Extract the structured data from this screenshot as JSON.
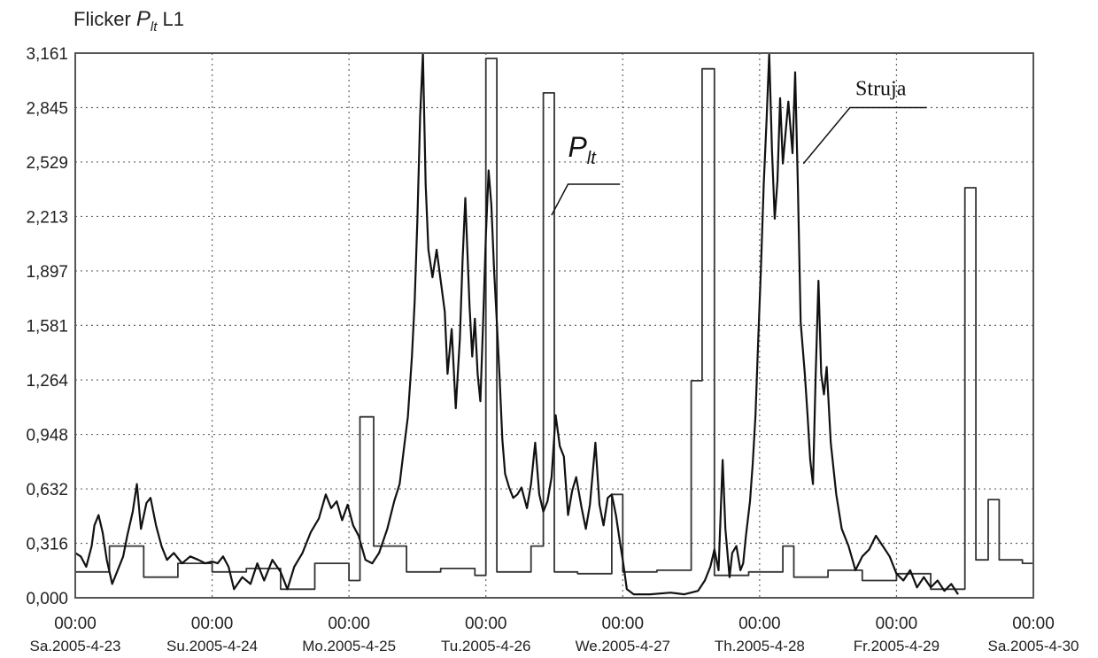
{
  "chart_data": {
    "type": "line",
    "title": "Flicker",
    "title_symbol": "P",
    "title_subscript": "lt",
    "title_suffix": " L1",
    "xlabel": "",
    "ylabel": "",
    "ylim": [
      0,
      3.161
    ],
    "grid": true,
    "y_ticks": [
      "3,161",
      "2,845",
      "2,529",
      "2,213",
      "1,897",
      "1,581",
      "1,264",
      "0,948",
      "0,632",
      "0,316",
      "0,000"
    ],
    "y_tick_values": [
      3.161,
      2.845,
      2.529,
      2.213,
      1.897,
      1.581,
      1.264,
      0.948,
      0.632,
      0.316,
      0.0
    ],
    "x_ticks": [
      {
        "time": "00:00",
        "date": "Sa.2005-4-23"
      },
      {
        "time": "00:00",
        "date": "Su.2005-4-24"
      },
      {
        "time": "00:00",
        "date": "Mo.2005-4-25"
      },
      {
        "time": "00:00",
        "date": "Tu.2005-4-26"
      },
      {
        "time": "00:00",
        "date": "We.2005-4-27"
      },
      {
        "time": "00:00",
        "date": "Th.2005-4-28"
      },
      {
        "time": "00:00",
        "date": "Fr.2005-4-29"
      },
      {
        "time": "00:00",
        "date": "Sa.2005-4-30"
      }
    ],
    "xlim": [
      0,
      7
    ],
    "x_unit": "days from Sa.2005-4-23 00:00",
    "annotations": [
      {
        "text": "Struja",
        "series": "Struja"
      },
      {
        "text": "P",
        "subscript": "lt",
        "series": "Plt"
      }
    ],
    "series": [
      {
        "name": "Plt",
        "style": "step",
        "color": "#333333",
        "points": [
          [
            0.0,
            0.15
          ],
          [
            0.25,
            0.15
          ],
          [
            0.25,
            0.3
          ],
          [
            0.5,
            0.3
          ],
          [
            0.5,
            0.12
          ],
          [
            0.75,
            0.12
          ],
          [
            0.75,
            0.2
          ],
          [
            1.0,
            0.2
          ],
          [
            1.0,
            0.15
          ],
          [
            1.25,
            0.15
          ],
          [
            1.25,
            0.17
          ],
          [
            1.5,
            0.17
          ],
          [
            1.5,
            0.05
          ],
          [
            1.75,
            0.05
          ],
          [
            1.75,
            0.2
          ],
          [
            2.0,
            0.2
          ],
          [
            2.0,
            0.1
          ],
          [
            2.08,
            0.1
          ],
          [
            2.08,
            1.05
          ],
          [
            2.18,
            1.05
          ],
          [
            2.18,
            0.3
          ],
          [
            2.42,
            0.3
          ],
          [
            2.42,
            0.15
          ],
          [
            2.67,
            0.15
          ],
          [
            2.67,
            0.17
          ],
          [
            2.92,
            0.17
          ],
          [
            2.92,
            0.13
          ],
          [
            3.0,
            0.13
          ],
          [
            3.0,
            3.13
          ],
          [
            3.08,
            3.13
          ],
          [
            3.08,
            0.15
          ],
          [
            3.33,
            0.15
          ],
          [
            3.33,
            0.3
          ],
          [
            3.42,
            0.3
          ],
          [
            3.42,
            2.93
          ],
          [
            3.5,
            2.93
          ],
          [
            3.5,
            0.15
          ],
          [
            3.67,
            0.15
          ],
          [
            3.67,
            0.14
          ],
          [
            3.92,
            0.14
          ],
          [
            3.92,
            0.6
          ],
          [
            4.0,
            0.6
          ],
          [
            4.0,
            0.15
          ],
          [
            4.25,
            0.15
          ],
          [
            4.25,
            0.16
          ],
          [
            4.5,
            0.16
          ],
          [
            4.5,
            1.26
          ],
          [
            4.58,
            1.26
          ],
          [
            4.58,
            3.07
          ],
          [
            4.67,
            3.07
          ],
          [
            4.67,
            0.13
          ],
          [
            4.92,
            0.13
          ],
          [
            4.92,
            0.15
          ],
          [
            5.17,
            0.15
          ],
          [
            5.17,
            0.3
          ],
          [
            5.25,
            0.3
          ],
          [
            5.25,
            0.12
          ],
          [
            5.5,
            0.12
          ],
          [
            5.5,
            0.16
          ],
          [
            5.75,
            0.16
          ],
          [
            5.75,
            0.1
          ],
          [
            6.0,
            0.1
          ],
          [
            6.0,
            0.14
          ],
          [
            6.25,
            0.14
          ],
          [
            6.25,
            0.05
          ],
          [
            6.5,
            0.05
          ],
          [
            6.5,
            2.38
          ],
          [
            6.58,
            2.38
          ],
          [
            6.58,
            0.22
          ],
          [
            6.67,
            0.22
          ],
          [
            6.67,
            0.57
          ],
          [
            6.75,
            0.57
          ],
          [
            6.75,
            0.22
          ],
          [
            6.92,
            0.22
          ],
          [
            6.92,
            0.2
          ],
          [
            7.0,
            0.2
          ]
        ]
      },
      {
        "name": "Struja",
        "style": "line",
        "color": "#111111",
        "points": [
          [
            0.0,
            0.26
          ],
          [
            0.04,
            0.24
          ],
          [
            0.08,
            0.18
          ],
          [
            0.12,
            0.3
          ],
          [
            0.14,
            0.42
          ],
          [
            0.17,
            0.48
          ],
          [
            0.2,
            0.38
          ],
          [
            0.23,
            0.22
          ],
          [
            0.27,
            0.08
          ],
          [
            0.31,
            0.16
          ],
          [
            0.35,
            0.24
          ],
          [
            0.38,
            0.36
          ],
          [
            0.42,
            0.5
          ],
          [
            0.45,
            0.66
          ],
          [
            0.48,
            0.4
          ],
          [
            0.52,
            0.55
          ],
          [
            0.55,
            0.58
          ],
          [
            0.59,
            0.42
          ],
          [
            0.63,
            0.3
          ],
          [
            0.67,
            0.22
          ],
          [
            0.72,
            0.26
          ],
          [
            0.78,
            0.2
          ],
          [
            0.84,
            0.24
          ],
          [
            0.9,
            0.22
          ],
          [
            0.95,
            0.2
          ],
          [
            1.0,
            0.21
          ],
          [
            1.04,
            0.2
          ],
          [
            1.08,
            0.24
          ],
          [
            1.12,
            0.18
          ],
          [
            1.16,
            0.05
          ],
          [
            1.22,
            0.12
          ],
          [
            1.28,
            0.08
          ],
          [
            1.33,
            0.2
          ],
          [
            1.38,
            0.1
          ],
          [
            1.44,
            0.22
          ],
          [
            1.5,
            0.15
          ],
          [
            1.55,
            0.05
          ],
          [
            1.6,
            0.18
          ],
          [
            1.66,
            0.26
          ],
          [
            1.72,
            0.38
          ],
          [
            1.78,
            0.46
          ],
          [
            1.83,
            0.6
          ],
          [
            1.87,
            0.52
          ],
          [
            1.91,
            0.56
          ],
          [
            1.95,
            0.45
          ],
          [
            1.99,
            0.54
          ],
          [
            2.03,
            0.42
          ],
          [
            2.07,
            0.36
          ],
          [
            2.12,
            0.22
          ],
          [
            2.17,
            0.2
          ],
          [
            2.22,
            0.26
          ],
          [
            2.28,
            0.4
          ],
          [
            2.33,
            0.56
          ],
          [
            2.37,
            0.66
          ],
          [
            2.4,
            0.86
          ],
          [
            2.43,
            1.05
          ],
          [
            2.46,
            1.4
          ],
          [
            2.48,
            1.72
          ],
          [
            2.5,
            2.2
          ],
          [
            2.52,
            2.8
          ],
          [
            2.54,
            3.16
          ],
          [
            2.56,
            2.4
          ],
          [
            2.58,
            2.02
          ],
          [
            2.61,
            1.86
          ],
          [
            2.64,
            2.02
          ],
          [
            2.67,
            1.84
          ],
          [
            2.7,
            1.66
          ],
          [
            2.72,
            1.3
          ],
          [
            2.75,
            1.56
          ],
          [
            2.78,
            1.1
          ],
          [
            2.81,
            1.5
          ],
          [
            2.83,
            1.96
          ],
          [
            2.85,
            2.32
          ],
          [
            2.88,
            1.7
          ],
          [
            2.9,
            1.4
          ],
          [
            2.92,
            1.62
          ],
          [
            2.94,
            1.3
          ],
          [
            2.96,
            1.14
          ],
          [
            2.98,
            1.6
          ],
          [
            3.0,
            2.1
          ],
          [
            3.02,
            2.48
          ],
          [
            3.04,
            2.28
          ],
          [
            3.06,
            1.9
          ],
          [
            3.08,
            1.6
          ],
          [
            3.1,
            1.28
          ],
          [
            3.12,
            0.92
          ],
          [
            3.14,
            0.72
          ],
          [
            3.17,
            0.64
          ],
          [
            3.2,
            0.58
          ],
          [
            3.23,
            0.6
          ],
          [
            3.26,
            0.64
          ],
          [
            3.3,
            0.52
          ],
          [
            3.33,
            0.66
          ],
          [
            3.36,
            0.9
          ],
          [
            3.39,
            0.6
          ],
          [
            3.42,
            0.5
          ],
          [
            3.45,
            0.56
          ],
          [
            3.48,
            0.7
          ],
          [
            3.51,
            1.06
          ],
          [
            3.54,
            0.88
          ],
          [
            3.57,
            0.82
          ],
          [
            3.6,
            0.48
          ],
          [
            3.63,
            0.62
          ],
          [
            3.66,
            0.7
          ],
          [
            3.7,
            0.52
          ],
          [
            3.73,
            0.4
          ],
          [
            3.76,
            0.54
          ],
          [
            3.8,
            0.9
          ],
          [
            3.83,
            0.54
          ],
          [
            3.86,
            0.42
          ],
          [
            3.89,
            0.58
          ],
          [
            3.92,
            0.6
          ],
          [
            3.95,
            0.48
          ],
          [
            3.98,
            0.32
          ],
          [
            4.0,
            0.22
          ],
          [
            4.03,
            0.05
          ],
          [
            4.08,
            0.02
          ],
          [
            4.2,
            0.02
          ],
          [
            4.35,
            0.03
          ],
          [
            4.45,
            0.02
          ],
          [
            4.55,
            0.04
          ],
          [
            4.6,
            0.1
          ],
          [
            4.64,
            0.18
          ],
          [
            4.67,
            0.28
          ],
          [
            4.7,
            0.16
          ],
          [
            4.73,
            0.8
          ],
          [
            4.75,
            0.4
          ],
          [
            4.78,
            0.12
          ],
          [
            4.8,
            0.26
          ],
          [
            4.83,
            0.3
          ],
          [
            4.86,
            0.16
          ],
          [
            4.88,
            0.2
          ],
          [
            4.9,
            0.36
          ],
          [
            4.93,
            0.56
          ],
          [
            4.95,
            0.78
          ],
          [
            4.97,
            1.06
          ],
          [
            4.99,
            1.5
          ],
          [
            5.01,
            1.92
          ],
          [
            5.03,
            2.4
          ],
          [
            5.05,
            2.76
          ],
          [
            5.07,
            3.16
          ],
          [
            5.09,
            2.6
          ],
          [
            5.11,
            2.2
          ],
          [
            5.13,
            2.42
          ],
          [
            5.15,
            2.9
          ],
          [
            5.17,
            2.52
          ],
          [
            5.19,
            2.7
          ],
          [
            5.21,
            2.88
          ],
          [
            5.24,
            2.58
          ],
          [
            5.26,
            3.05
          ],
          [
            5.28,
            2.38
          ],
          [
            5.3,
            1.6
          ],
          [
            5.33,
            1.3
          ],
          [
            5.35,
            1.06
          ],
          [
            5.37,
            0.8
          ],
          [
            5.39,
            0.66
          ],
          [
            5.41,
            1.3
          ],
          [
            5.43,
            1.84
          ],
          [
            5.45,
            1.3
          ],
          [
            5.47,
            1.18
          ],
          [
            5.49,
            1.34
          ],
          [
            5.52,
            0.9
          ],
          [
            5.56,
            0.6
          ],
          [
            5.6,
            0.4
          ],
          [
            5.65,
            0.3
          ],
          [
            5.7,
            0.16
          ],
          [
            5.75,
            0.24
          ],
          [
            5.8,
            0.28
          ],
          [
            5.85,
            0.36
          ],
          [
            5.9,
            0.3
          ],
          [
            5.95,
            0.24
          ],
          [
            6.0,
            0.14
          ],
          [
            6.05,
            0.1
          ],
          [
            6.1,
            0.16
          ],
          [
            6.15,
            0.06
          ],
          [
            6.2,
            0.12
          ],
          [
            6.25,
            0.06
          ],
          [
            6.3,
            0.1
          ],
          [
            6.35,
            0.04
          ],
          [
            6.4,
            0.08
          ],
          [
            6.45,
            0.02
          ]
        ]
      }
    ]
  }
}
